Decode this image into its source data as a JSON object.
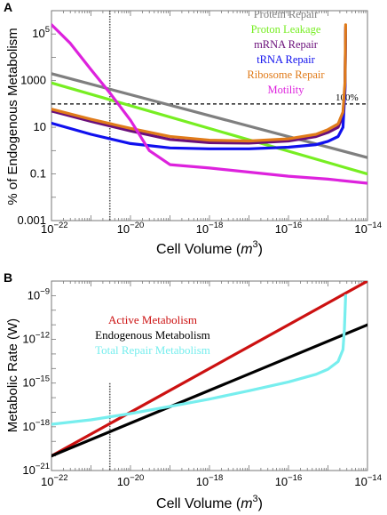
{
  "chart_data": [
    {
      "panel": "A",
      "type": "line",
      "xlabel": "Cell Volume (m³)",
      "xlabel_main": "Cell Volume (",
      "xlabel_var": "m",
      "xlabel_exp": "3",
      "xlabel_close": ")",
      "ylabel": "% of Endogenous Metabolism",
      "xscale": "log",
      "yscale": "log",
      "xlim": [
        1e-22,
        1e-14
      ],
      "ylim": [
        0.001,
        1000000
      ],
      "x_ticks": [
        {
          "value": 1e-22,
          "base": "10",
          "exp": "−22"
        },
        {
          "value": 1e-20,
          "base": "10",
          "exp": "−20"
        },
        {
          "value": 1e-18,
          "base": "10",
          "exp": "−18"
        },
        {
          "value": 1e-16,
          "base": "10",
          "exp": "−16"
        },
        {
          "value": 1e-14,
          "base": "10",
          "exp": "−14"
        }
      ],
      "y_ticks": [
        {
          "value": 0.001,
          "text": "0.001"
        },
        {
          "value": 0.1,
          "text": "0.1"
        },
        {
          "value": 10,
          "text": "10"
        },
        {
          "value": 1000,
          "text": "1000"
        },
        {
          "value": 100000,
          "base": "10",
          "exp": "5"
        }
      ],
      "reference_line": {
        "y": 100,
        "label": "100%"
      },
      "vertical_marker_x": 3e-21,
      "legend_placement": "top-right",
      "series": [
        {
          "name": "Protein Repair",
          "color": "#7f7f7f",
          "x": [
            1e-22,
            1e-14
          ],
          "y": [
            2000,
            0.5
          ]
        },
        {
          "name": "Proton Leakage",
          "color": "#77ee22",
          "x": [
            1e-22,
            1e-14
          ],
          "y": [
            800,
            0.1
          ]
        },
        {
          "name": "mRNA Repair",
          "color": "#6a0f7a",
          "x": [
            1e-22,
            1e-21,
            1e-20,
            1e-19,
            1e-18,
            1e-17,
            1e-16,
            5e-16,
            1e-15,
            1.8e-15,
            2.4e-15,
            2.7e-15,
            2.8e-15
          ],
          "y": [
            50,
            18,
            7,
            3,
            2.2,
            2.1,
            2.6,
            4,
            6,
            10,
            30,
            600,
            150000
          ]
        },
        {
          "name": "tRNA Repair",
          "color": "#1010ee",
          "x": [
            1e-22,
            1e-21,
            1e-20,
            1e-19,
            1e-18,
            1e-17,
            1e-16,
            5e-16,
            1e-15,
            1.8e-15,
            2.4e-15,
            2.7e-15,
            2.8e-15
          ],
          "y": [
            15,
            5,
            2,
            1.3,
            1.2,
            1.2,
            1.4,
            1.8,
            2.5,
            4,
            10,
            400,
            200000
          ]
        },
        {
          "name": "Ribosome Repair",
          "color": "#e07b1a",
          "x": [
            1e-22,
            1e-21,
            1e-20,
            1e-19,
            1e-18,
            1e-17,
            1e-16,
            5e-16,
            1e-15,
            1.8e-15,
            2.4e-15,
            2.7e-15,
            2.8e-15
          ],
          "y": [
            60,
            22,
            9,
            4,
            2.8,
            2.6,
            3.2,
            5,
            8,
            14,
            45,
            900,
            250000
          ]
        },
        {
          "name": "Motility",
          "color": "#dd22dd",
          "x": [
            1e-22,
            3e-22,
            1e-21,
            3e-21,
            1e-20,
            3e-20,
            1e-19,
            1e-18,
            1e-17,
            1e-16,
            1e-15,
            1e-14
          ],
          "y": [
            250000,
            40000,
            3000,
            300,
            20,
            1,
            0.25,
            0.18,
            0.12,
            0.08,
            0.06,
            0.04
          ]
        }
      ]
    },
    {
      "panel": "B",
      "type": "line",
      "xlabel": "Cell Volume (m³)",
      "xlabel_main": "Cell Volume (",
      "xlabel_var": "m",
      "xlabel_exp": "3",
      "xlabel_close": ")",
      "ylabel": "Metabolic Rate (W)",
      "xscale": "log",
      "yscale": "log",
      "xlim": [
        1e-22,
        1e-14
      ],
      "ylim": [
        1e-21,
        1e-08
      ],
      "x_ticks": [
        {
          "value": 1e-22,
          "base": "10",
          "exp": "−22"
        },
        {
          "value": 1e-20,
          "base": "10",
          "exp": "−20"
        },
        {
          "value": 1e-18,
          "base": "10",
          "exp": "−18"
        },
        {
          "value": 1e-16,
          "base": "10",
          "exp": "−16"
        },
        {
          "value": 1e-14,
          "base": "10",
          "exp": "−14"
        }
      ],
      "y_ticks": [
        {
          "value": 1e-21,
          "base": "10",
          "exp": "−21"
        },
        {
          "value": 1e-18,
          "base": "10",
          "exp": "−18"
        },
        {
          "value": 1e-15,
          "base": "10",
          "exp": "−15"
        },
        {
          "value": 1e-12,
          "base": "10",
          "exp": "−12"
        },
        {
          "value": 1e-09,
          "base": "10",
          "exp": "−9"
        }
      ],
      "vertical_marker": {
        "x": 3e-21,
        "y_top": 1e-15
      },
      "legend_placement": "top-left",
      "series": [
        {
          "name": "Active Metabolism",
          "color": "#cc1111",
          "x": [
            1e-22,
            1e-14
          ],
          "y": [
            1e-20,
            1e-08
          ]
        },
        {
          "name": "Endogenous Metabolism",
          "color": "#000000",
          "x": [
            1e-22,
            1e-14
          ],
          "y": [
            1e-20,
            1e-11
          ]
        },
        {
          "name": "Total Repair Metabolism",
          "color": "#77eeee",
          "x": [
            1e-22,
            1e-21,
            1e-20,
            1e-19,
            1e-18,
            1e-17,
            1e-16,
            5e-16,
            1e-15,
            1.8e-15,
            2.4e-15,
            2.6e-15,
            2.8e-15
          ],
          "y": [
            1.5e-18,
            3e-18,
            8e-18,
            2.5e-17,
            8e-17,
            3e-16,
            1.2e-15,
            4e-15,
            9e-15,
            3e-14,
            2e-13,
            5e-12,
            1e-09
          ]
        }
      ]
    }
  ]
}
